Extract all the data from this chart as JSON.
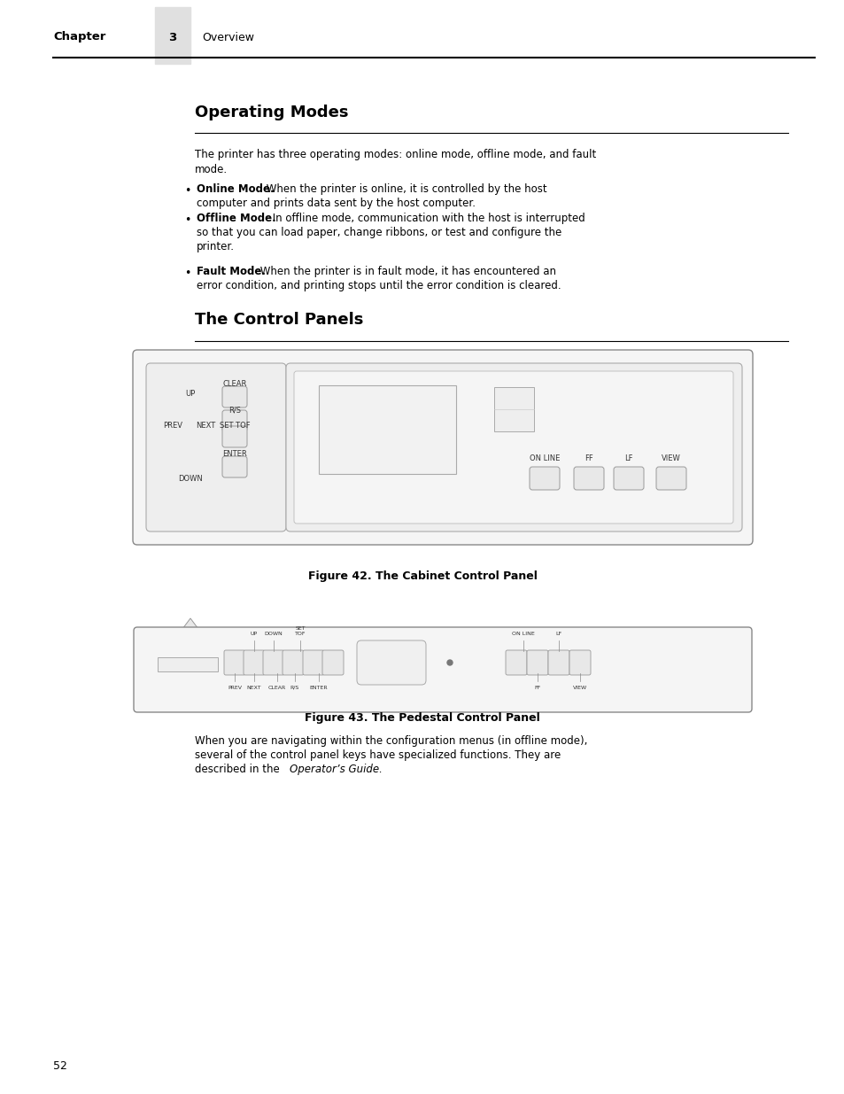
{
  "bg_color": "#ffffff",
  "page_width": 9.54,
  "page_height": 12.35,
  "header": {
    "chapter_bold": "Chapter",
    "chapter_num": "3",
    "chapter_sub": "Overview",
    "bar_color": "#e0e0e0",
    "line_color": "#000000"
  },
  "section1_title": "Operating Modes",
  "bullets": [
    {
      "bold": "Online Mode.",
      "line1": " When the printer is online, it is controlled by the host",
      "line2": "computer and prints data sent by the host computer.",
      "line3": ""
    },
    {
      "bold": "Offline Mode.",
      "line1": " In offline mode, communication with the host is interrupted",
      "line2": "so that you can load paper, change ribbons, or test and configure the",
      "line3": "printer."
    },
    {
      "bold": "Fault Mode.",
      "line1": " When the printer is in fault mode, it has encountered an",
      "line2": "error condition, and printing stops until the error condition is cleared.",
      "line3": ""
    }
  ],
  "section2_title": "The Control Panels",
  "fig42_caption": "Figure 42. The Cabinet Control Panel",
  "fig43_caption": "Figure 43. The Pedestal Control Panel",
  "footer_text": "52",
  "intro_line1": "The printer has three operating modes: online mode, offline mode, and fault",
  "intro_line2": "mode.",
  "close_line1": "When you are navigating within the configuration menus (in offline mode),",
  "close_line2": "several of the control panel keys have specialized functions. They are",
  "close_line3a": "described in the ",
  "close_line3b": "Operator’s Guide."
}
